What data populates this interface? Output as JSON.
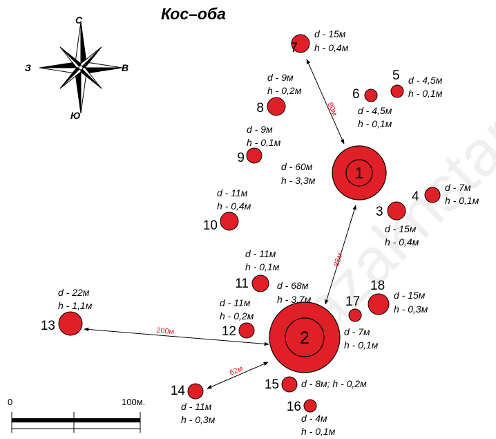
{
  "title": "Кос–оба",
  "colors": {
    "mound_fill": "#e11f26",
    "mound_stroke": "#000000",
    "distance_label": "#e0161b",
    "watermark": "#d3d3d3"
  },
  "compass": {
    "north": "С",
    "south": "Ю",
    "east": "В",
    "west": "З"
  },
  "mounds": {
    "m1": {
      "num": "1",
      "d": "d - 60м",
      "h": "h - 3,3м"
    },
    "m2": {
      "num": "2",
      "d": "d - 68м",
      "h": "h - 3,7м"
    },
    "m3": {
      "num": "3",
      "d": "d - 15м",
      "h": "h - 0,4м"
    },
    "m4": {
      "num": "4",
      "d": "d - 7м",
      "h": "h - 0,1м"
    },
    "m5": {
      "num": "5",
      "d": "d - 4,5м",
      "h": "h - 0,1м"
    },
    "m6": {
      "num": "6",
      "d": "d - 4,5м",
      "h": "h - 0,1м"
    },
    "m7": {
      "num": "7",
      "d": "d - 15м",
      "h": "h - 0,4м"
    },
    "m8": {
      "num": "8",
      "d": "d - 9м",
      "h": "h - 0,2м"
    },
    "m9": {
      "num": "9",
      "d": "d - 9м",
      "h": "h - 0,1м"
    },
    "m10": {
      "num": "10",
      "d": "d - 11м",
      "h": "h - 0,4м"
    },
    "m11": {
      "num": "11",
      "d": "d - 11м",
      "h": "h - 0,1м"
    },
    "m12": {
      "num": "12",
      "d": "d - 11м",
      "h": "h - 0,2м"
    },
    "m13": {
      "num": "13",
      "d": "d - 22м",
      "h": "h - 1,1м"
    },
    "m14": {
      "num": "14",
      "d": "d - 11м",
      "h": "h - 0,3м"
    },
    "m15": {
      "num": "15",
      "dh": "d - 8м; h - 0,2м"
    },
    "m16": {
      "num": "16",
      "d": "d - 4м",
      "h": "h - 0,1м"
    },
    "m17": {
      "num": "17",
      "d": "d - 7м",
      "h": "h - 0,1м"
    },
    "m18": {
      "num": "18",
      "d": "d - 15м",
      "h": "h - 0,3м"
    }
  },
  "distances": {
    "d1_7": "80м",
    "d1_2": "85м",
    "d2_13": "200м",
    "d2_14": "62м"
  },
  "scale": {
    "start": "0",
    "end": "100м."
  },
  "watermark": "kazakhstan"
}
